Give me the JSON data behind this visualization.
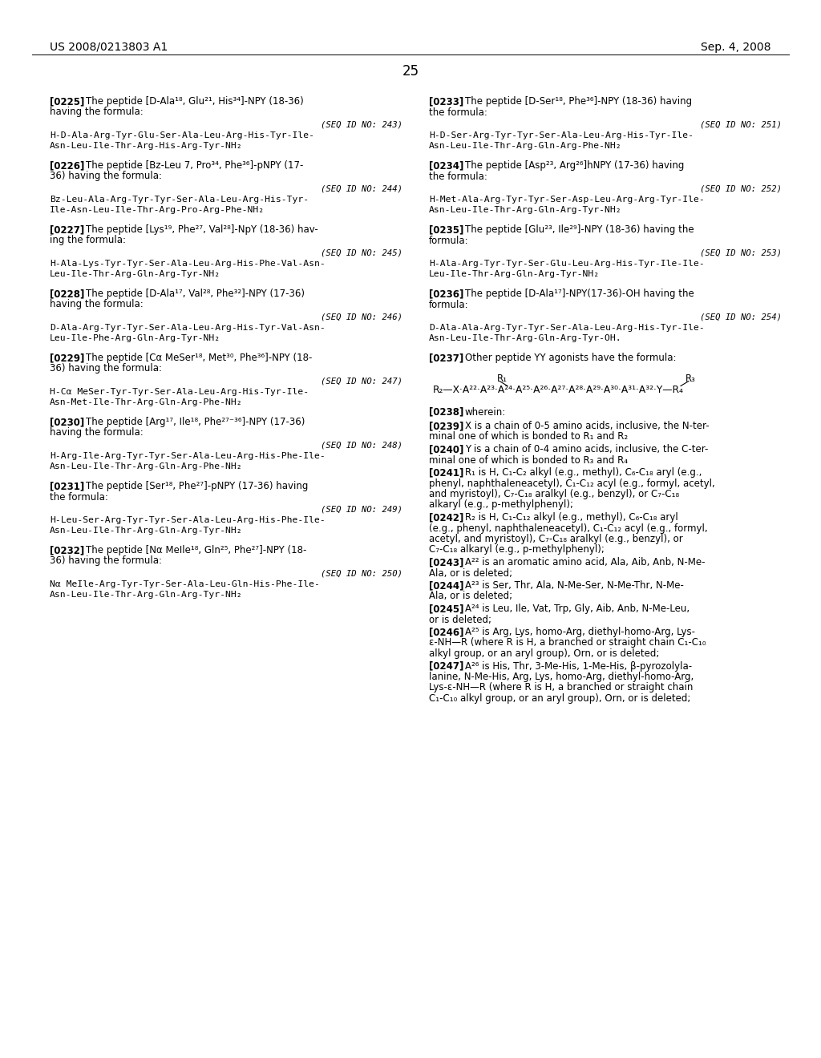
{
  "patent_left": "US 2008/0213803 A1",
  "patent_right": "Sep. 4, 2008",
  "page_number": "25",
  "bg_color": "#ffffff",
  "text_color": "#000000",
  "figsize": [
    10.24,
    13.2
  ],
  "dpi": 100,
  "left_column": [
    {
      "type": "paragraph",
      "tag": "[0225]",
      "text_first": "The peptide [D-Ala¹⁸, Glu²¹, His³⁴]-NPY (18-36)",
      "text_rest": [
        "having the formula:"
      ]
    },
    {
      "type": "seq",
      "seq_id": "(SEQ ID NO: 243)",
      "lines": [
        "H-D-Ala-Arg-Tyr-Glu-Ser-Ala-Leu-Arg-His-Tyr-Ile-",
        "Asn-Leu-Ile-Thr-Arg-His-Arg-Tyr-NH₂"
      ]
    },
    {
      "type": "paragraph",
      "tag": "[0226]",
      "text_first": "The peptide [Bz-Leu 7, Pro³⁴, Phe³⁶]-pNPY (17-",
      "text_rest": [
        "36) having the formula:"
      ]
    },
    {
      "type": "seq",
      "seq_id": "(SEQ ID NO: 244)",
      "lines": [
        "Bz-Leu-Ala-Arg-Tyr-Tyr-Ser-Ala-Leu-Arg-His-Tyr-",
        "Ile-Asn-Leu-Ile-Thr-Arg-Pro-Arg-Phe-NH₂"
      ]
    },
    {
      "type": "paragraph",
      "tag": "[0227]",
      "text_first": "The peptide [Lys¹⁹, Phe²⁷, Val²⁸]-NpY (18-36) hav-",
      "text_rest": [
        "ing the formula:"
      ]
    },
    {
      "type": "seq",
      "seq_id": "(SEQ ID NO: 245)",
      "lines": [
        "H-Ala-Lys-Tyr-Tyr-Ser-Ala-Leu-Arg-His-Phe-Val-Asn-",
        "Leu-Ile-Thr-Arg-Gln-Arg-Tyr-NH₂"
      ]
    },
    {
      "type": "paragraph",
      "tag": "[0228]",
      "text_first": "The peptide [D-Ala¹⁷, Val²⁸, Phe³²]-NPY (17-36)",
      "text_rest": [
        "having the formula:"
      ]
    },
    {
      "type": "seq",
      "seq_id": "(SEQ ID NO: 246)",
      "lines": [
        "D-Ala-Arg-Tyr-Tyr-Ser-Ala-Leu-Arg-His-Tyr-Val-Asn-",
        "Leu-Ile-Phe-Arg-Gln-Arg-Tyr-NH₂"
      ]
    },
    {
      "type": "paragraph",
      "tag": "[0229]",
      "text_first": "The peptide [Cα MeSer¹⁸, Met³⁰, Phe³⁶]-NPY (18-",
      "text_rest": [
        "36) having the formula:"
      ]
    },
    {
      "type": "seq",
      "seq_id": "(SEQ ID NO: 247)",
      "lines": [
        "H-Cα MeSer-Tyr-Tyr-Ser-Ala-Leu-Arg-His-Tyr-Ile-",
        "Asn-Met-Ile-Thr-Arg-Gln-Arg-Phe-NH₂"
      ]
    },
    {
      "type": "paragraph",
      "tag": "[0230]",
      "text_first": "The peptide [Arg¹⁷, Ile¹⁸, Phe²⁷⁻³⁶]-NPY (17-36)",
      "text_rest": [
        "having the formula:"
      ]
    },
    {
      "type": "seq",
      "seq_id": "(SEQ ID NO: 248)",
      "lines": [
        "H-Arg-Ile-Arg-Tyr-Tyr-Ser-Ala-Leu-Arg-His-Phe-Ile-",
        "Asn-Leu-Ile-Thr-Arg-Gln-Arg-Phe-NH₂"
      ]
    },
    {
      "type": "paragraph",
      "tag": "[0231]",
      "text_first": "The peptide [Ser¹⁸, Phe²⁷]-pNPY (17-36) having",
      "text_rest": [
        "the formula:"
      ]
    },
    {
      "type": "seq",
      "seq_id": "(SEQ ID NO: 249)",
      "lines": [
        "H-Leu-Ser-Arg-Tyr-Tyr-Ser-Ala-Leu-Arg-His-Phe-Ile-",
        "Asn-Leu-Ile-Thr-Arg-Gln-Arg-Tyr-NH₂"
      ]
    },
    {
      "type": "paragraph",
      "tag": "[0232]",
      "text_first": "The peptide [Nα MeIle¹⁸, Gln²⁵, Phe²⁷]-NPY (18-",
      "text_rest": [
        "36) having the formula:"
      ]
    },
    {
      "type": "seq",
      "seq_id": "(SEQ ID NO: 250)",
      "lines": [
        "Nα MeIle-Arg-Tyr-Tyr-Ser-Ala-Leu-Gln-His-Phe-Ile-",
        "Asn-Leu-Ile-Thr-Arg-Gln-Arg-Tyr-NH₂"
      ]
    }
  ],
  "right_column": [
    {
      "type": "paragraph",
      "tag": "[0233]",
      "text_first": "The peptide [D-Ser¹⁸, Phe³⁶]-NPY (18-36) having",
      "text_rest": [
        "the formula:"
      ]
    },
    {
      "type": "seq",
      "seq_id": "(SEQ ID NO: 251)",
      "lines": [
        "H-D-Ser-Arg-Tyr-Tyr-Ser-Ala-Leu-Arg-His-Tyr-Ile-",
        "Asn-Leu-Ile-Thr-Arg-Gln-Arg-Phe-NH₂"
      ]
    },
    {
      "type": "paragraph",
      "tag": "[0234]",
      "text_first": "The peptide [Asp²³, Arg²⁶]hNPY (17-36) having",
      "text_rest": [
        "the formula:"
      ]
    },
    {
      "type": "seq",
      "seq_id": "(SEQ ID NO: 252)",
      "lines": [
        "H-Met-Ala-Arg-Tyr-Tyr-Ser-Asp-Leu-Arg-Arg-Tyr-Ile-",
        "Asn-Leu-Ile-Thr-Arg-Gln-Arg-Tyr-NH₂"
      ]
    },
    {
      "type": "paragraph",
      "tag": "[0235]",
      "text_first": "The peptide [Glu²³, Ile²⁹]-NPY (18-36) having the",
      "text_rest": [
        "formula:"
      ]
    },
    {
      "type": "seq",
      "seq_id": "(SEQ ID NO: 253)",
      "lines": [
        "H-Ala-Arg-Tyr-Tyr-Ser-Glu-Leu-Arg-His-Tyr-Ile-Ile-",
        "Leu-Ile-Thr-Arg-Gln-Arg-Tyr-NH₂"
      ]
    },
    {
      "type": "paragraph",
      "tag": "[0236]",
      "text_first": "The peptide [D-Ala¹⁷]-NPY(17-36)-OH having the",
      "text_rest": [
        "formula:"
      ]
    },
    {
      "type": "seq",
      "seq_id": "(SEQ ID NO: 254)",
      "lines": [
        "D-Ala-Ala-Arg-Tyr-Tyr-Ser-Ala-Leu-Arg-His-Tyr-Ile-",
        "Asn-Leu-Ile-Thr-Arg-Gln-Arg-Tyr-OH."
      ]
    },
    {
      "type": "paragraph_plain",
      "tag": "[0237]",
      "text_first": "Other peptide YY agonists have the formula:"
    },
    {
      "type": "formula"
    },
    {
      "type": "paragraph_plain",
      "tag": "[0238]",
      "text_first": "wherein:"
    },
    {
      "type": "definition",
      "tag": "[0239]",
      "text_first": "X is a chain of 0-5 amino acids, inclusive, the N-ter-",
      "text_rest": [
        "minal one of which is bonded to R₁ and R₂"
      ]
    },
    {
      "type": "definition",
      "tag": "[0240]",
      "text_first": "Y is a chain of 0-4 amino acids, inclusive, the C-ter-",
      "text_rest": [
        "minal one of which is bonded to R₃ and R₄"
      ]
    },
    {
      "type": "definition",
      "tag": "[0241]",
      "text_first": "R₁ is H, C₁-C₂ alkyl (e.g., methyl), C₆-C₁₈ aryl (e.g.,",
      "text_rest": [
        "phenyl, naphthaleneacetyl), C₁-C₁₂ acyl (e.g., formyl, acetyl,",
        "and myristoyl), C₇-C₁₈ aralkyl (e.g., benzyl), or C₇-C₁₈",
        "alkaryl (e.g., p-methylphenyl);"
      ]
    },
    {
      "type": "definition",
      "tag": "[0242]",
      "text_first": "R₂ is H, C₁-C₁₂ alkyl (e.g., methyl), C₆-C₁₈ aryl",
      "text_rest": [
        "(e.g., phenyl, naphthaleneacetyl), C₁-C₁₂ acyl (e.g., formyl,",
        "acetyl, and myristoyl), C₇-C₁₈ aralkyl (e.g., benzyl), or",
        "C₇-C₁₈ alkaryl (e.g., p-methylphenyl);"
      ]
    },
    {
      "type": "definition",
      "tag": "[0243]",
      "text_first": "A²² is an aromatic amino acid, Ala, Aib, Anb, N-Me-",
      "text_rest": [
        "Ala, or is deleted;"
      ]
    },
    {
      "type": "definition",
      "tag": "[0244]",
      "text_first": "A²³ is Ser, Thr, Ala, N-Me-Ser, N-Me-Thr, N-Me-",
      "text_rest": [
        "Ala, or is deleted;"
      ]
    },
    {
      "type": "definition",
      "tag": "[0245]",
      "text_first": "A²⁴ is Leu, Ile, Vat, Trp, Gly, Aib, Anb, N-Me-Leu,",
      "text_rest": [
        "or is deleted;"
      ]
    },
    {
      "type": "definition",
      "tag": "[0246]",
      "text_first": "A²⁵ is Arg, Lys, homo-Arg, diethyl-homo-Arg, Lys-",
      "text_rest": [
        "ε-NH—R (where R is H, a branched or straight chain C₁-C₁₀",
        "alkyl group, or an aryl group), Orn, or is deleted;"
      ]
    },
    {
      "type": "definition",
      "tag": "[0247]",
      "text_first": "A²⁶ is His, Thr, 3-Me-His, 1-Me-His, β-pyrozolyla-",
      "text_rest": [
        "lanine, N-Me-His, Arg, Lys, homo-Arg, diethyl-homo-Arg,",
        "Lys-ε-NH—R (where R is H, a branched or straight chain",
        "C₁-C₁₀ alkyl group, or an aryl group), Orn, or is deleted;"
      ]
    }
  ]
}
